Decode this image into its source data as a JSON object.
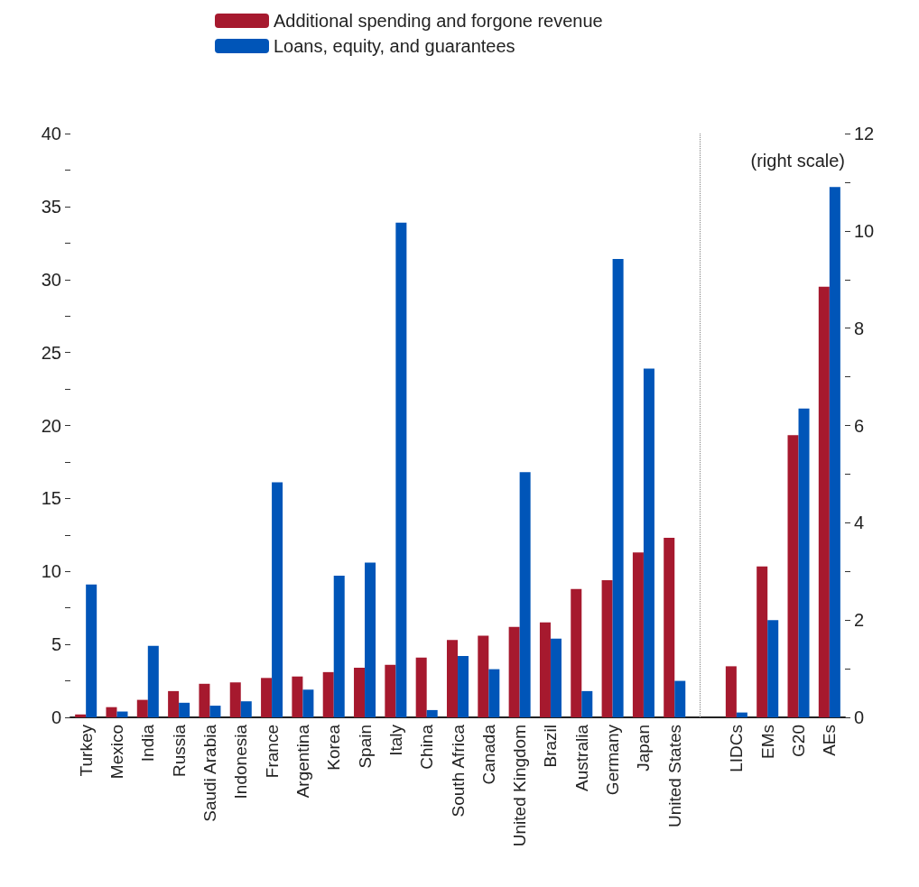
{
  "chart_data": {
    "type": "bar",
    "categories": [
      "Turkey",
      "Mexico",
      "India",
      "Russia",
      "Saudi Arabia",
      "Indonesia",
      "France",
      "Argentina",
      "Korea",
      "Spain",
      "Italy",
      "China",
      "South Africa",
      "Canada",
      "United Kingdom",
      "Brazil",
      "Australia",
      "Germany",
      "Japan",
      "United States",
      null,
      "LIDCs",
      "EMs",
      "G20",
      "AEs"
    ],
    "series": [
      {
        "name": "Additional spending and forgone revenue",
        "color": "#a6192e",
        "values": [
          0.2,
          0.7,
          1.2,
          1.8,
          2.3,
          2.4,
          2.7,
          2.8,
          3.1,
          3.4,
          3.6,
          4.1,
          5.3,
          5.6,
          6.2,
          6.5,
          8.8,
          9.4,
          11.3,
          12.3,
          null,
          null,
          null,
          null,
          null
        ]
      },
      {
        "name": "Loans, equity, and guarantees",
        "color": "#0055b8",
        "values": [
          9.1,
          0.4,
          4.9,
          1.0,
          0.8,
          1.1,
          16.1,
          1.9,
          9.7,
          10.6,
          33.9,
          0.5,
          4.2,
          3.3,
          16.8,
          5.4,
          1.8,
          31.4,
          23.9,
          2.5,
          null,
          null,
          null,
          null,
          null
        ]
      },
      {
        "color": "#a6192e",
        "axis": "y2",
        "values": [
          null,
          null,
          null,
          null,
          null,
          null,
          null,
          null,
          null,
          null,
          null,
          null,
          null,
          null,
          null,
          null,
          null,
          null,
          null,
          null,
          null,
          1.05,
          3.1,
          5.8,
          8.85
        ]
      },
      {
        "color": "#0055b8",
        "axis": "y2",
        "values": [
          null,
          null,
          null,
          null,
          null,
          null,
          null,
          null,
          null,
          null,
          null,
          null,
          null,
          null,
          null,
          null,
          null,
          null,
          null,
          null,
          null,
          0.1,
          2.0,
          6.35,
          10.9
        ]
      }
    ],
    "ylim": [
      0,
      40
    ],
    "yticks": [
      0,
      {
        "value": 2.5,
        "label": null
      },
      5,
      {
        "value": 7.5,
        "label": null
      },
      10,
      {
        "value": 12.5,
        "label": null
      },
      15,
      {
        "value": 17.5,
        "label": null
      },
      20,
      {
        "value": 22.5,
        "label": null
      },
      25,
      {
        "value": 27.5,
        "label": null
      },
      30,
      {
        "value": 32.5,
        "label": null
      },
      35,
      {
        "value": 37.5,
        "label": null
      },
      40
    ],
    "y2lim": [
      0,
      12
    ],
    "y2ticks": [
      0,
      {
        "value": 1,
        "label": null
      },
      2,
      {
        "value": 3,
        "label": null
      },
      4,
      {
        "value": 5,
        "label": null
      },
      6,
      {
        "value": 7,
        "label": null
      },
      8,
      {
        "value": 9,
        "label": null
      },
      10,
      {
        "value": 11,
        "label": null
      },
      12
    ],
    "ref_lines": [
      {
        "axis": "x",
        "value": null,
        "color": "#808080",
        "line_style": "dotted"
      }
    ],
    "annotations": [
      "(right scale)"
    ],
    "legend": "top"
  }
}
